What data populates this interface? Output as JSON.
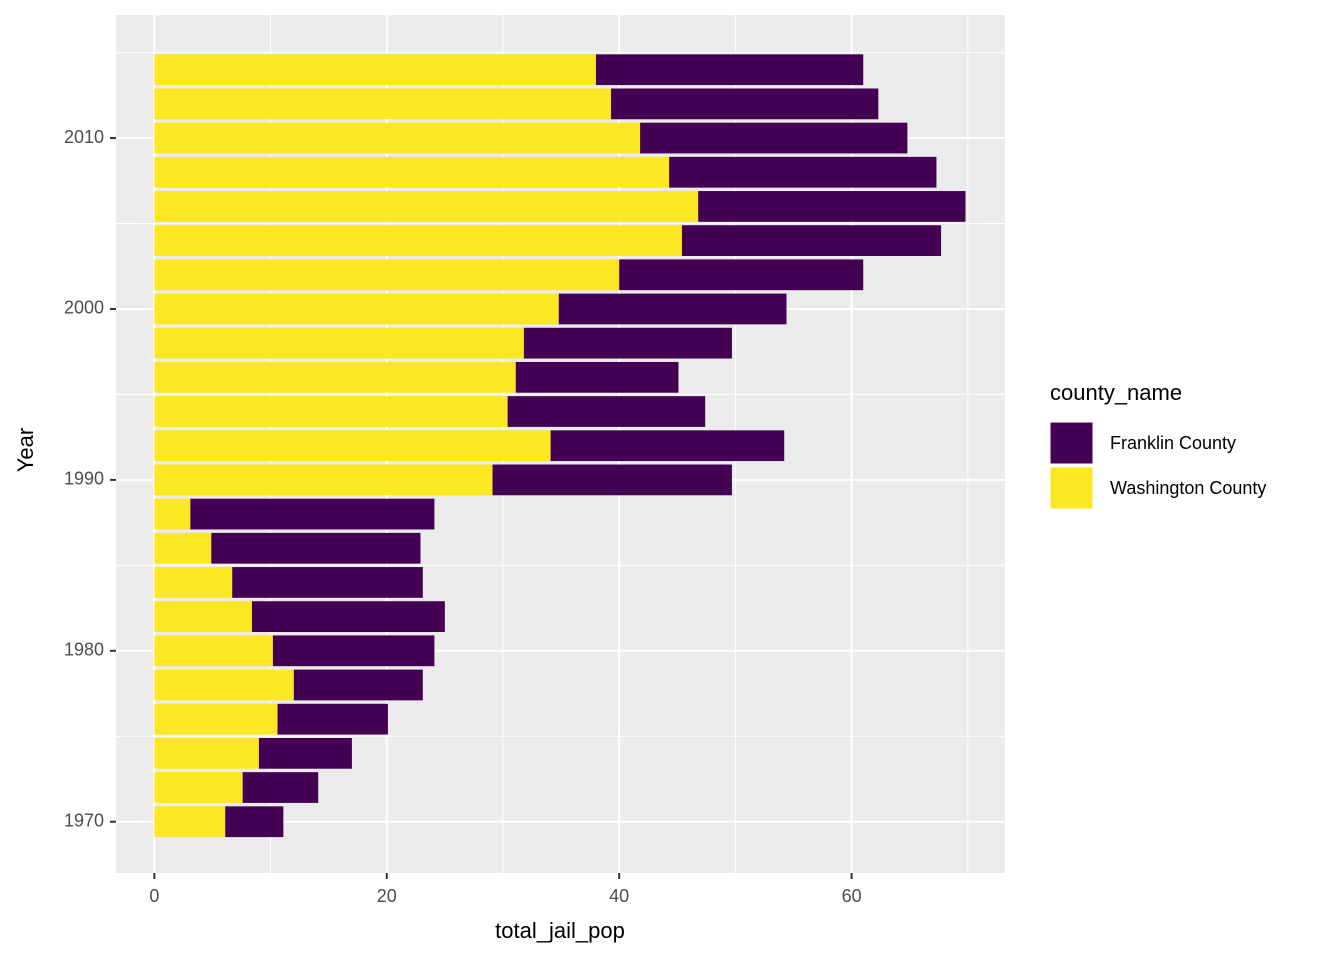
{
  "chart_data": {
    "type": "stacked-barh",
    "x_label": "total_jail_pop",
    "y_label": "Year",
    "legend_title": "county_name",
    "categories": [
      1970,
      1972,
      1974,
      1976,
      1978,
      1980,
      1982,
      1984,
      1986,
      1988,
      1990,
      1992,
      1994,
      1996,
      1998,
      2000,
      2002,
      2004,
      2006,
      2008,
      2010,
      2012,
      2014
    ],
    "series": [
      {
        "name": "Franklin County",
        "color": "#440154",
        "values": [
          5.0,
          6.5,
          8.0,
          9.5,
          11.1,
          13.9,
          16.6,
          16.4,
          18.0,
          21.0,
          20.6,
          20.1,
          17.0,
          14.0,
          17.9,
          19.6,
          21.0,
          22.3,
          23.0,
          23.0,
          23.0,
          23.0,
          23.0
        ]
      },
      {
        "name": "Washington County",
        "color": "#fde725",
        "values": [
          6.1,
          7.6,
          9.0,
          10.6,
          12.0,
          10.2,
          8.4,
          6.7,
          4.9,
          3.1,
          29.1,
          34.1,
          30.4,
          31.1,
          31.8,
          34.8,
          40.0,
          45.4,
          46.8,
          44.3,
          41.8,
          39.3,
          38.0
        ]
      }
    ],
    "xlim": [
      -3.3,
      73.2
    ],
    "xticks": [
      0,
      20,
      40,
      60
    ],
    "x_minor_ticks": [
      10,
      30,
      50,
      70
    ],
    "ylim": [
      1967,
      2017.2
    ],
    "yticks": [
      1970,
      1980,
      1990,
      2000,
      2010
    ],
    "y_minor_ticks": [
      1975,
      1985,
      1995,
      2005,
      2015
    ],
    "grid": true,
    "legend": "right"
  }
}
